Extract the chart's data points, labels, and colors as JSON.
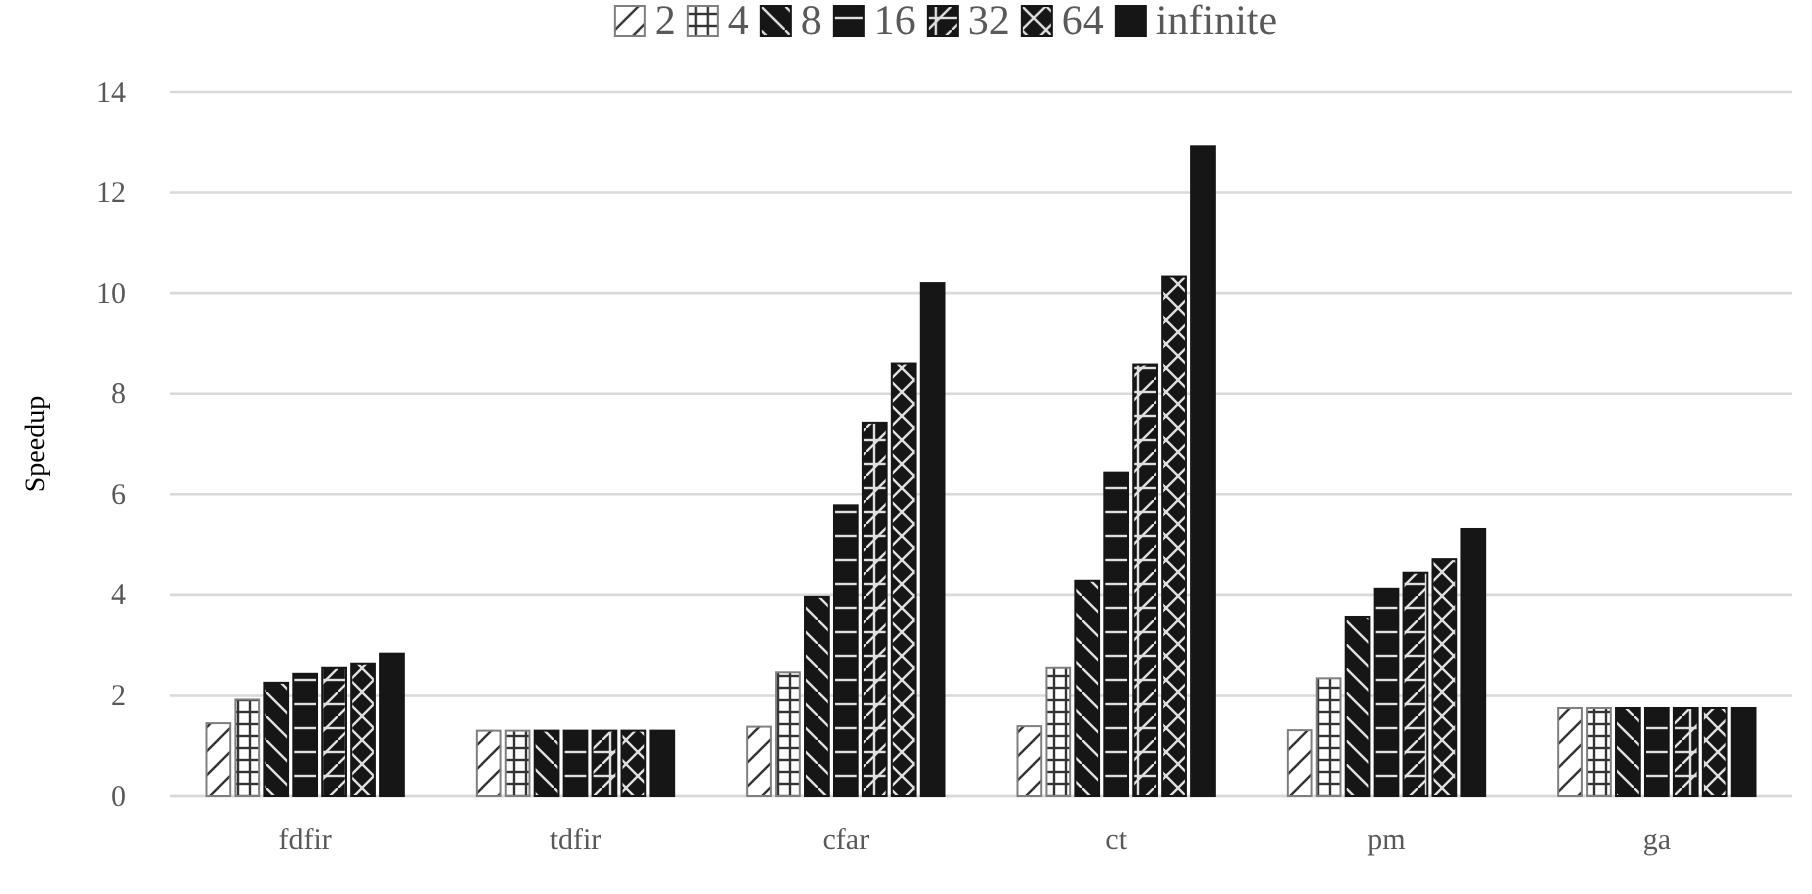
{
  "chart_data": {
    "type": "bar",
    "ylabel": "Speedup",
    "categories": [
      "fdfir",
      "tdfir",
      "cfar",
      "ct",
      "pm",
      "ga"
    ],
    "ylim": [
      0,
      14
    ],
    "yticks": [
      0,
      2,
      4,
      6,
      8,
      10,
      12,
      14
    ],
    "grid": "y",
    "legend": "top",
    "series": [
      {
        "name": "2",
        "color": "#7f7f7f",
        "values": [
          1.45,
          1.3,
          1.38,
          1.39,
          1.31,
          1.75
        ]
      },
      {
        "name": "4",
        "color": "#7f7f7f",
        "values": [
          1.92,
          1.3,
          2.46,
          2.55,
          2.34,
          1.75
        ]
      },
      {
        "name": "8",
        "color": "#161616",
        "values": [
          2.25,
          1.3,
          3.96,
          4.28,
          3.56,
          1.75
        ]
      },
      {
        "name": "16",
        "color": "#161616",
        "values": [
          2.43,
          1.3,
          5.78,
          6.43,
          4.12,
          1.75
        ]
      },
      {
        "name": "32",
        "color": "#161616",
        "values": [
          2.55,
          1.3,
          7.42,
          8.58,
          4.44,
          1.75
        ]
      },
      {
        "name": "64",
        "color": "#161616",
        "values": [
          2.63,
          1.3,
          8.6,
          10.33,
          4.71,
          1.75
        ]
      },
      {
        "name": "infinite",
        "color": "#161616",
        "values": [
          2.83,
          1.3,
          10.2,
          12.92,
          5.31,
          1.75
        ]
      }
    ]
  }
}
